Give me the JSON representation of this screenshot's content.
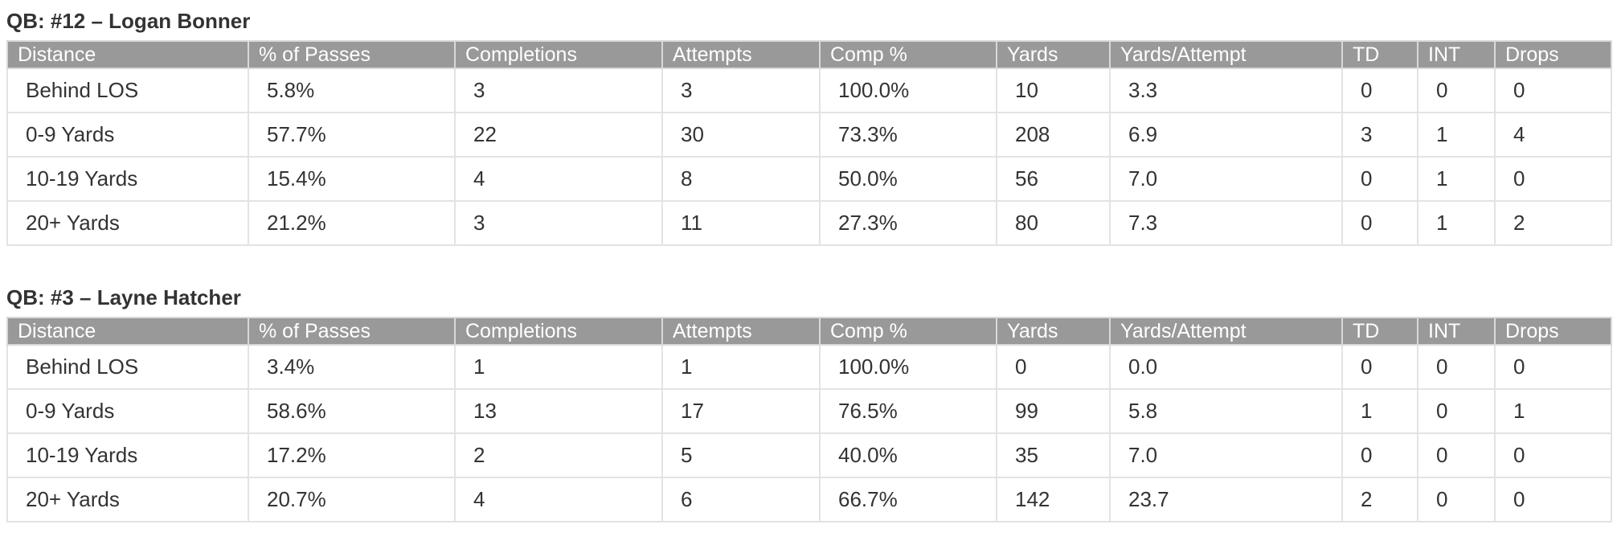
{
  "columns": [
    "Distance",
    "% of Passes",
    "Completions",
    "Attempts",
    "Comp %",
    "Yards",
    "Yards/Attempt",
    "TD",
    "INT",
    "Drops"
  ],
  "quarterbacks": [
    {
      "title": "QB: #12 – Logan Bonner",
      "rows": [
        [
          "Behind LOS",
          "5.8%",
          "3",
          "3",
          "100.0%",
          "10",
          "3.3",
          "0",
          "0",
          "0"
        ],
        [
          "0-9 Yards",
          "57.7%",
          "22",
          "30",
          "73.3%",
          "208",
          "6.9",
          "3",
          "1",
          "4"
        ],
        [
          "10-19 Yards",
          "15.4%",
          "4",
          "8",
          "50.0%",
          "56",
          "7.0",
          "0",
          "1",
          "0"
        ],
        [
          "20+ Yards",
          "21.2%",
          "3",
          "11",
          "27.3%",
          "80",
          "7.3",
          "0",
          "1",
          "2"
        ]
      ]
    },
    {
      "title": "QB: #3 – Layne Hatcher",
      "rows": [
        [
          "Behind LOS",
          "3.4%",
          "1",
          "1",
          "100.0%",
          "0",
          "0.0",
          "0",
          "0",
          "0"
        ],
        [
          "0-9 Yards",
          "58.6%",
          "13",
          "17",
          "76.5%",
          "99",
          "5.8",
          "1",
          "0",
          "1"
        ],
        [
          "10-19 Yards",
          "17.2%",
          "2",
          "5",
          "40.0%",
          "35",
          "7.0",
          "0",
          "0",
          "0"
        ],
        [
          "20+ Yards",
          "20.7%",
          "4",
          "6",
          "66.7%",
          "142",
          "23.7",
          "2",
          "0",
          "0"
        ]
      ]
    }
  ]
}
